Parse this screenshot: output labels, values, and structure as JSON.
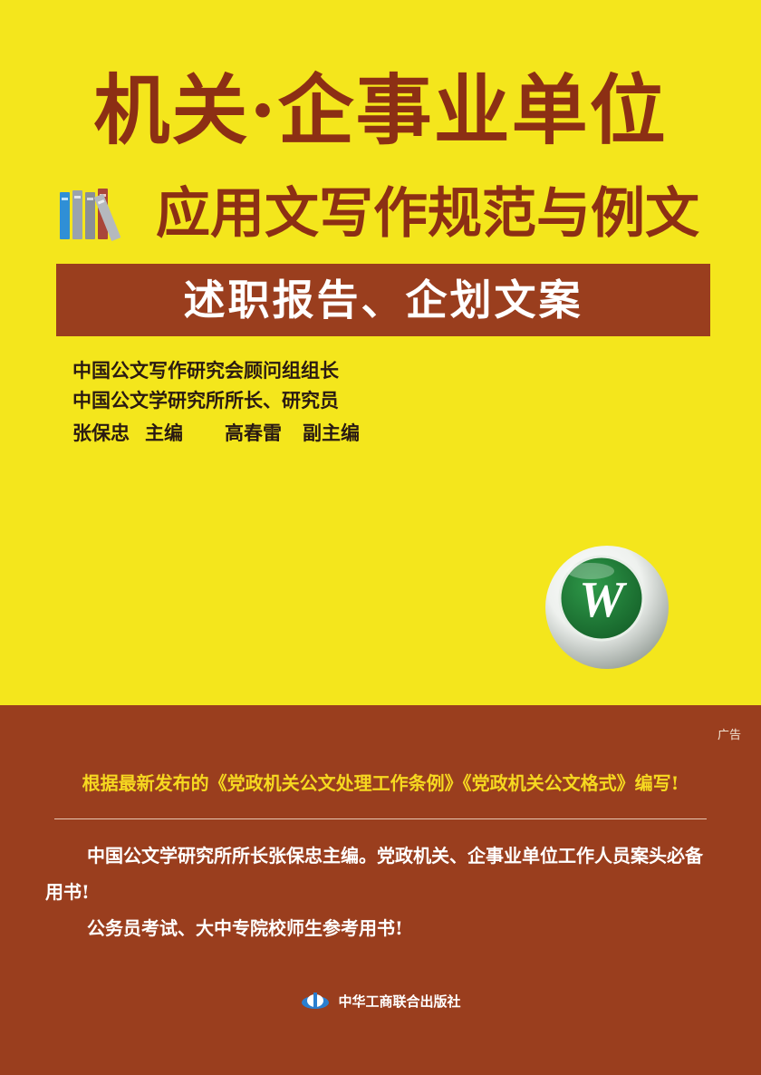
{
  "cover": {
    "series_title": "机关·企事业单位",
    "subtitle": "应用文写作规范与例文",
    "volume_title": "述职报告、企划文案",
    "author_credits": [
      "中国公文写作研究会顾问组组长",
      "中国公文学研究所所长、研究员"
    ],
    "editors": {
      "chief_name": "张保忠",
      "chief_role": "主编",
      "deputy_name": "高春雷",
      "deputy_role": "副主编"
    },
    "logo_letter": "W",
    "icons": [
      "books-icon",
      "w-logo-icon",
      "publisher-logo-icon"
    ],
    "colors": {
      "background": "#f4e61c",
      "brown": "#9a3e1e",
      "title_text": "#8c2f14",
      "headline_yellow": "#f6d820",
      "logo_green": "#1f7a37"
    }
  },
  "promo": {
    "ad_label": "广告",
    "headline": "根据最新发布的《党政机关公文处理工作条例》《党政机关公文格式》编写!",
    "paragraphs": [
      "中国公文学研究所所长张保忠主编。党政机关、企事业单位工作人员案头必备用书!",
      "公务员考试、大中专院校师生参考用书!"
    ],
    "publisher": "中华工商联合出版社"
  }
}
